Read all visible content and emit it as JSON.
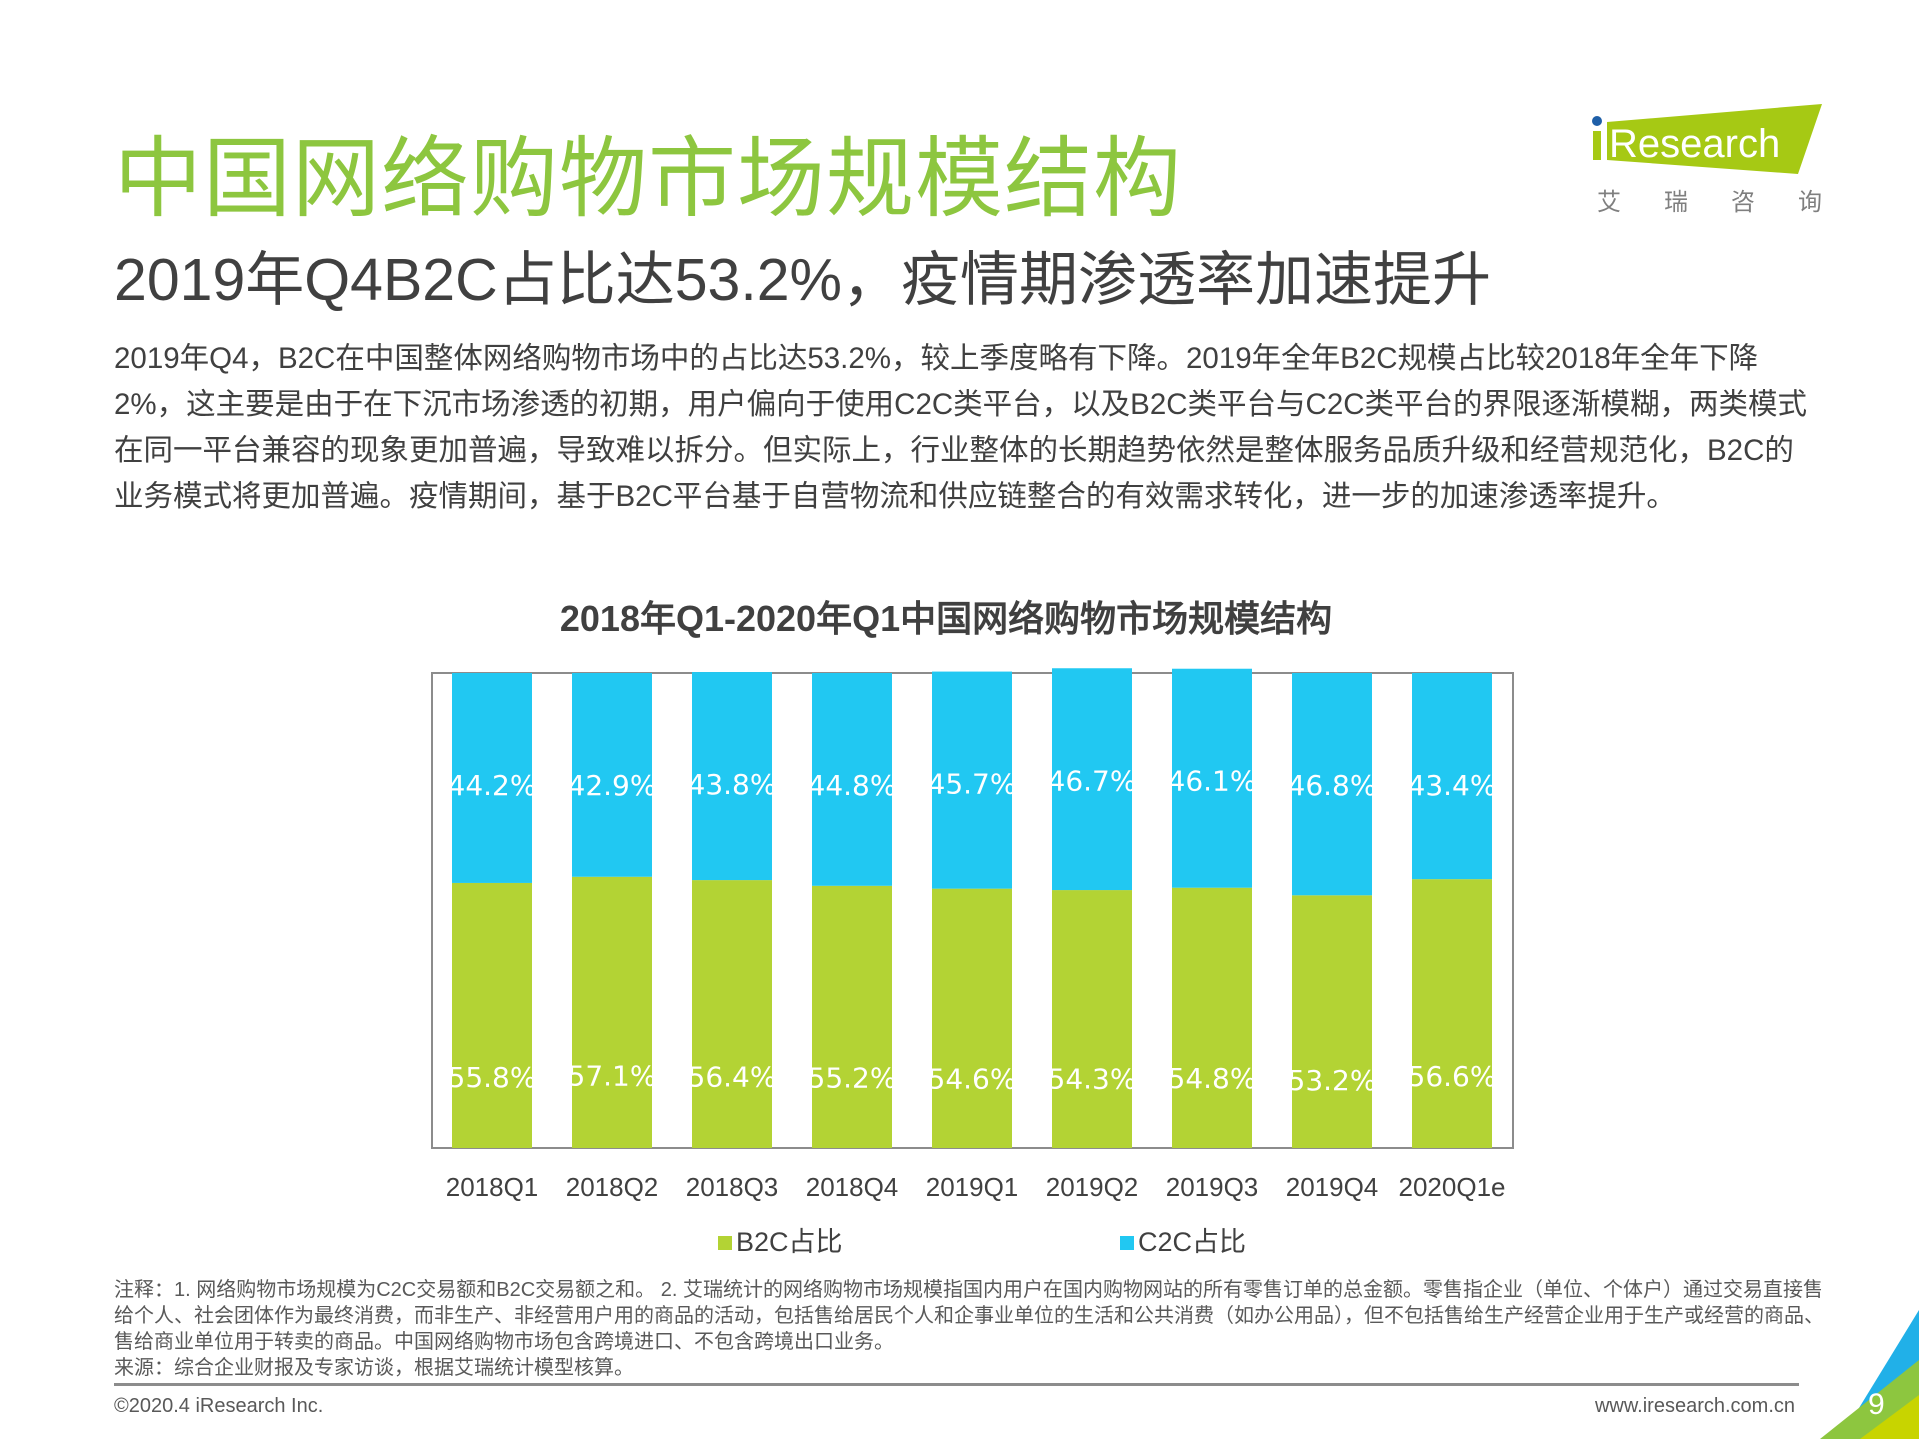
{
  "title": "中国网络购物市场规模结构",
  "subtitle": "2019年Q4B2C占比达53.2%，疫情期渗透率加速提升",
  "paragraph": "2019年Q4，B2C在中国整体网络购物市场中的占比达53.2%，较上季度略有下降。2019年全年B2C规模占比较2018年全年下降2%，这主要是由于在下沉市场渗透的初期，用户偏向于使用C2C类平台，以及B2C类平台与C2C类平台的界限逐渐模糊，两类模式在同一平台兼容的现象更加普遍，导致难以拆分。但实际上，行业整体的长期趋势依然是整体服务品质升级和经营规范化，B2C的业务模式将更加普遍。疫情期间，基于B2C平台基于自营物流和供应链整合的有效需求转化，进一步的加速渗透率提升。",
  "logo": {
    "brand": "iResearch",
    "chinese": "艾 瑞 咨 询"
  },
  "chart_data": {
    "type": "bar",
    "stacked": true,
    "title": "2018年Q1-2020年Q1中国网络购物市场规模结构",
    "categories": [
      "2018Q1",
      "2018Q2",
      "2018Q3",
      "2018Q4",
      "2019Q1",
      "2019Q2",
      "2019Q3",
      "2019Q4",
      "2020Q1e"
    ],
    "series": [
      {
        "name": "B2C占比",
        "color": "#b3d334",
        "values": [
          55.8,
          57.1,
          56.4,
          55.2,
          54.6,
          54.3,
          54.8,
          53.2,
          56.6
        ],
        "labels": [
          "55.8%",
          "57.1%",
          "56.4%",
          "55.2%",
          "54.6%",
          "54.3%",
          "54.8%",
          "53.2%",
          "56.6%"
        ]
      },
      {
        "name": "C2C占比",
        "color": "#21c8f2",
        "values": [
          44.2,
          42.9,
          43.8,
          44.8,
          45.7,
          46.7,
          46.1,
          46.8,
          43.4
        ],
        "labels": [
          "44.2%",
          "42.9%",
          "43.8%",
          "44.8%",
          "45.7%",
          "46.7%",
          "46.1%",
          "46.8%",
          "43.4%"
        ]
      }
    ],
    "ylim": [
      0,
      100
    ],
    "grid": false,
    "legend": "bottom"
  },
  "notes": [
    "注释：1. 网络购物市场规模为C2C交易额和B2C交易额之和。 2. 艾瑞统计的网络购物市场规模指国内用户在国内购物网站的所有零售订单的总金额。零售指企业（单位、个体户）通过交易直接售给个人、社会团体作为最终消费，而非生产、非经营用户用的商品的活动，包括售给居民个人和企事业单位的生活和公共消费（如办公用品），但不包括售给生产经营企业用于生产或经营的商品、售给商业单位用于转卖的商品。中国网络购物市场包含跨境进口、不包含跨境出口业务。",
    "来源：综合企业财报及专家访谈，根据艾瑞统计模型核算。"
  ],
  "footer": {
    "copyright": "©2020.4 iResearch Inc.",
    "url": "www.iresearch.com.cn",
    "page": "9"
  }
}
